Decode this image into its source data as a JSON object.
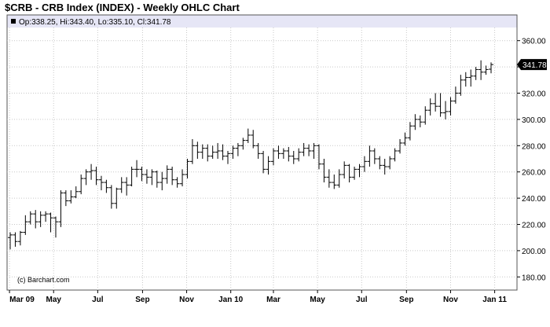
{
  "header": {
    "title": "$CRB - CRB Index (INDEX) - Weekly OHLC Chart",
    "ohlc_readout": "Op:338.25, Hi:343.40, Lo:335.10, Cl:341.78"
  },
  "watermark": "(c) Barchart.com",
  "last_price_label": "341.78",
  "colors": {
    "header_band": "#e6e6f6",
    "grid": "#c8c8c8",
    "bars": "#000000",
    "price_tag_bg": "#000000",
    "price_tag_text": "#ffffff"
  },
  "chart_data": {
    "type": "ohlc",
    "title": "$CRB - CRB Index (INDEX) - Weekly OHLC Chart",
    "xlabel": "",
    "ylabel": "",
    "ylim": [
      170,
      370
    ],
    "grid": true,
    "y_ticks": [
      "180.00",
      "200.00",
      "220.00",
      "240.00",
      "260.00",
      "280.00",
      "300.00",
      "320.00",
      "340.00",
      "360.00"
    ],
    "x_ticks": [
      "Mar 09",
      "May",
      "Jul",
      "Sep",
      "Nov",
      "Jan 10",
      "Mar",
      "May",
      "Jul",
      "Sep",
      "Nov",
      "Jan 11"
    ],
    "weeks_start": "2009-03-02",
    "series": [
      {
        "values": [
          [
            210,
            214,
            201,
            212
          ],
          [
            212,
            214,
            203,
            207
          ],
          [
            207,
            215,
            204,
            214
          ],
          [
            214,
            227,
            212,
            222
          ],
          [
            222,
            230,
            220,
            228
          ],
          [
            228,
            231,
            217,
            222
          ],
          [
            222,
            230,
            218,
            227
          ],
          [
            227,
            230,
            222,
            228
          ],
          [
            228,
            229,
            214,
            225
          ],
          [
            225,
            226,
            210,
            222
          ],
          [
            222,
            246,
            218,
            244
          ],
          [
            244,
            246,
            234,
            238
          ],
          [
            238,
            246,
            236,
            241
          ],
          [
            241,
            249,
            240,
            245
          ],
          [
            245,
            258,
            243,
            255
          ],
          [
            255,
            262,
            250,
            260
          ],
          [
            260,
            266,
            254,
            261
          ],
          [
            261,
            264,
            250,
            254
          ],
          [
            254,
            257,
            246,
            252
          ],
          [
            252,
            254,
            244,
            248
          ],
          [
            248,
            250,
            232,
            236
          ],
          [
            236,
            248,
            232,
            247
          ],
          [
            247,
            256,
            244,
            252
          ],
          [
            252,
            256,
            242,
            250
          ],
          [
            250,
            264,
            249,
            262
          ],
          [
            262,
            269,
            256,
            262
          ],
          [
            262,
            264,
            253,
            258
          ],
          [
            258,
            262,
            251,
            256
          ],
          [
            256,
            262,
            250,
            260
          ],
          [
            260,
            261,
            248,
            252
          ],
          [
            252,
            260,
            246,
            255
          ],
          [
            255,
            265,
            251,
            262
          ],
          [
            262,
            264,
            250,
            254
          ],
          [
            254,
            256,
            248,
            251
          ],
          [
            251,
            262,
            249,
            258
          ],
          [
            258,
            270,
            255,
            268
          ],
          [
            268,
            285,
            266,
            280
          ],
          [
            280,
            283,
            270,
            275
          ],
          [
            275,
            281,
            270,
            278
          ],
          [
            278,
            281,
            268,
            272
          ],
          [
            272,
            280,
            270,
            275
          ],
          [
            275,
            282,
            270,
            276
          ],
          [
            276,
            281,
            269,
            272
          ],
          [
            272,
            276,
            266,
            274
          ],
          [
            274,
            280,
            270,
            278
          ],
          [
            278,
            282,
            272,
            280
          ],
          [
            280,
            286,
            277,
            284
          ],
          [
            284,
            293,
            282,
            288
          ],
          [
            288,
            292,
            278,
            280
          ],
          [
            280,
            282,
            270,
            274
          ],
          [
            274,
            276,
            259,
            262
          ],
          [
            262,
            272,
            258,
            268
          ],
          [
            268,
            278,
            265,
            276
          ],
          [
            276,
            280,
            270,
            274
          ],
          [
            274,
            278,
            270,
            276
          ],
          [
            276,
            279,
            268,
            272
          ],
          [
            272,
            276,
            266,
            270
          ],
          [
            270,
            278,
            268,
            275
          ],
          [
            275,
            282,
            272,
            278
          ],
          [
            278,
            281,
            272,
            276
          ],
          [
            276,
            282,
            270,
            280
          ],
          [
            280,
            281,
            262,
            266
          ],
          [
            266,
            270,
            252,
            256
          ],
          [
            256,
            262,
            248,
            252
          ],
          [
            252,
            258,
            247,
            250
          ],
          [
            250,
            262,
            248,
            258
          ],
          [
            258,
            268,
            255,
            265
          ],
          [
            265,
            266,
            252,
            256
          ],
          [
            256,
            264,
            254,
            262
          ],
          [
            262,
            266,
            256,
            264
          ],
          [
            264,
            272,
            260,
            268
          ],
          [
            268,
            280,
            264,
            276
          ],
          [
            276,
            278,
            266,
            270
          ],
          [
            270,
            272,
            262,
            265
          ],
          [
            265,
            270,
            258,
            264
          ],
          [
            264,
            272,
            262,
            270
          ],
          [
            270,
            278,
            268,
            276
          ],
          [
            276,
            285,
            274,
            282
          ],
          [
            282,
            290,
            280,
            286
          ],
          [
            286,
            298,
            284,
            295
          ],
          [
            295,
            304,
            292,
            300
          ],
          [
            300,
            303,
            294,
            298
          ],
          [
            298,
            310,
            296,
            307
          ],
          [
            307,
            316,
            303,
            312
          ],
          [
            312,
            320,
            306,
            310
          ],
          [
            310,
            320,
            302,
            305
          ],
          [
            305,
            314,
            300,
            306
          ],
          [
            306,
            317,
            303,
            314
          ],
          [
            314,
            325,
            312,
            320
          ],
          [
            320,
            334,
            318,
            330
          ],
          [
            330,
            336,
            325,
            332
          ],
          [
            332,
            338,
            325,
            333
          ],
          [
            333,
            340,
            330,
            338
          ],
          [
            338,
            345,
            330,
            336
          ],
          [
            336,
            341,
            334,
            338
          ],
          [
            338.25,
            343.4,
            335.1,
            341.78
          ]
        ]
      }
    ]
  }
}
